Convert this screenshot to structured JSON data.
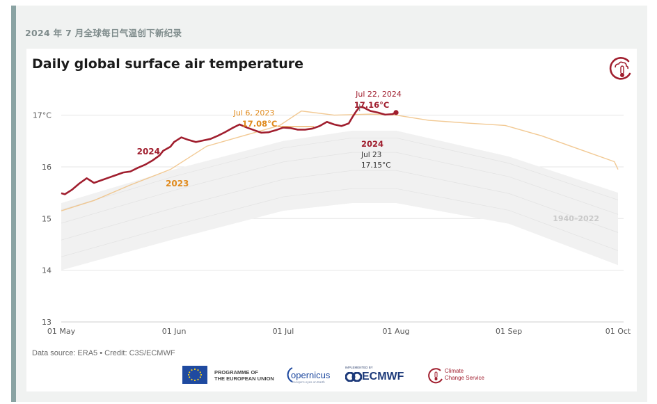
{
  "page_caption": "2024 年 7 月全球每日气温创下新纪录",
  "source_text": "Data source: ERA5 • Credit: C3S/ECMWF",
  "logos": {
    "eu_text": [
      "PROGRAMME OF",
      "THE EUROPEAN UNION"
    ],
    "copernicus": "opernicus",
    "copernicus_sub": "Europe's eyes on Earth",
    "ecmwf_small": "IMPLEMENTED BY",
    "ecmwf": "ECMWF",
    "climate_lines": [
      "Climate",
      "Change Service"
    ]
  },
  "colors": {
    "series_2024": "#a01e2e",
    "series_2023": "#f0c080",
    "label_2023": "#e08a1c",
    "historical": "#d8d8d8",
    "grid": "#e6e6e6"
  },
  "chart_data": {
    "type": "line",
    "title": "Daily global surface air temperature",
    "ylim": [
      13,
      17.6
    ],
    "yticks": [
      13,
      14,
      15,
      16,
      17
    ],
    "ytick_labels": [
      "13",
      "14",
      "15",
      "16",
      "17°C"
    ],
    "xticks": [
      "01 May",
      "01 Jun",
      "01 Jul",
      "01 Aug",
      "01 Sep",
      "01 Oct"
    ],
    "x_domain": [
      "2000-05-01",
      "2000-10-01"
    ],
    "grid": true,
    "series": [
      {
        "name": "2024",
        "x": [
          "05-01",
          "05-02",
          "05-04",
          "05-06",
          "05-08",
          "05-10",
          "05-12",
          "05-14",
          "05-16",
          "05-18",
          "05-20",
          "05-22",
          "05-24",
          "05-26",
          "05-28",
          "05-29",
          "05-31",
          "06-01",
          "06-03",
          "06-05",
          "06-07",
          "06-09",
          "06-11",
          "06-13",
          "06-15",
          "06-17",
          "06-19",
          "06-21",
          "06-23",
          "06-25",
          "06-27",
          "06-29",
          "07-01",
          "07-03",
          "07-05",
          "07-07",
          "07-09",
          "07-11",
          "07-13",
          "07-15",
          "07-17",
          "07-19",
          "07-20",
          "07-21",
          "07-22",
          "07-23",
          "07-25",
          "07-27",
          "07-29",
          "07-31",
          "08-01"
        ],
        "values": [
          15.49,
          15.47,
          15.56,
          15.68,
          15.78,
          15.69,
          15.74,
          15.79,
          15.84,
          15.89,
          15.91,
          15.98,
          16.04,
          16.12,
          16.22,
          16.31,
          16.39,
          16.48,
          16.57,
          16.52,
          16.48,
          16.51,
          16.54,
          16.6,
          16.67,
          16.75,
          16.82,
          16.76,
          16.71,
          16.66,
          16.67,
          16.71,
          16.76,
          16.75,
          16.72,
          16.72,
          16.74,
          16.79,
          16.87,
          16.82,
          16.79,
          16.84,
          16.96,
          17.07,
          17.16,
          17.15,
          17.08,
          17.05,
          17.01,
          17.02,
          17.05
        ]
      },
      {
        "name": "2023",
        "x": [
          "05-01",
          "05-10",
          "05-20",
          "05-31",
          "06-10",
          "06-20",
          "06-30",
          "07-06",
          "07-15",
          "07-25",
          "08-01",
          "08-10",
          "08-20",
          "08-31",
          "09-10",
          "09-20",
          "09-30",
          "10-01"
        ],
        "values": [
          15.15,
          15.35,
          15.65,
          15.95,
          16.4,
          16.6,
          16.8,
          17.08,
          17.0,
          17.02,
          17.0,
          16.9,
          16.85,
          16.8,
          16.6,
          16.35,
          16.1,
          15.95
        ]
      },
      {
        "name": "1940–2022",
        "x": [
          "05-01",
          "06-01",
          "07-01",
          "07-20",
          "08-01",
          "09-01",
          "10-01"
        ],
        "upper": [
          15.3,
          15.95,
          16.5,
          16.7,
          16.7,
          16.2,
          15.5
        ],
        "lower": [
          14.0,
          14.6,
          15.15,
          15.3,
          15.3,
          14.9,
          14.1
        ]
      }
    ],
    "annotations": [
      {
        "label": "Jul 22, 2024",
        "value": "17.16°C"
      },
      {
        "label": "Jul 6, 2023",
        "value": "17.08°C"
      },
      {
        "year": "2024",
        "label": "Jul 23",
        "value": "17.15°C"
      }
    ]
  }
}
